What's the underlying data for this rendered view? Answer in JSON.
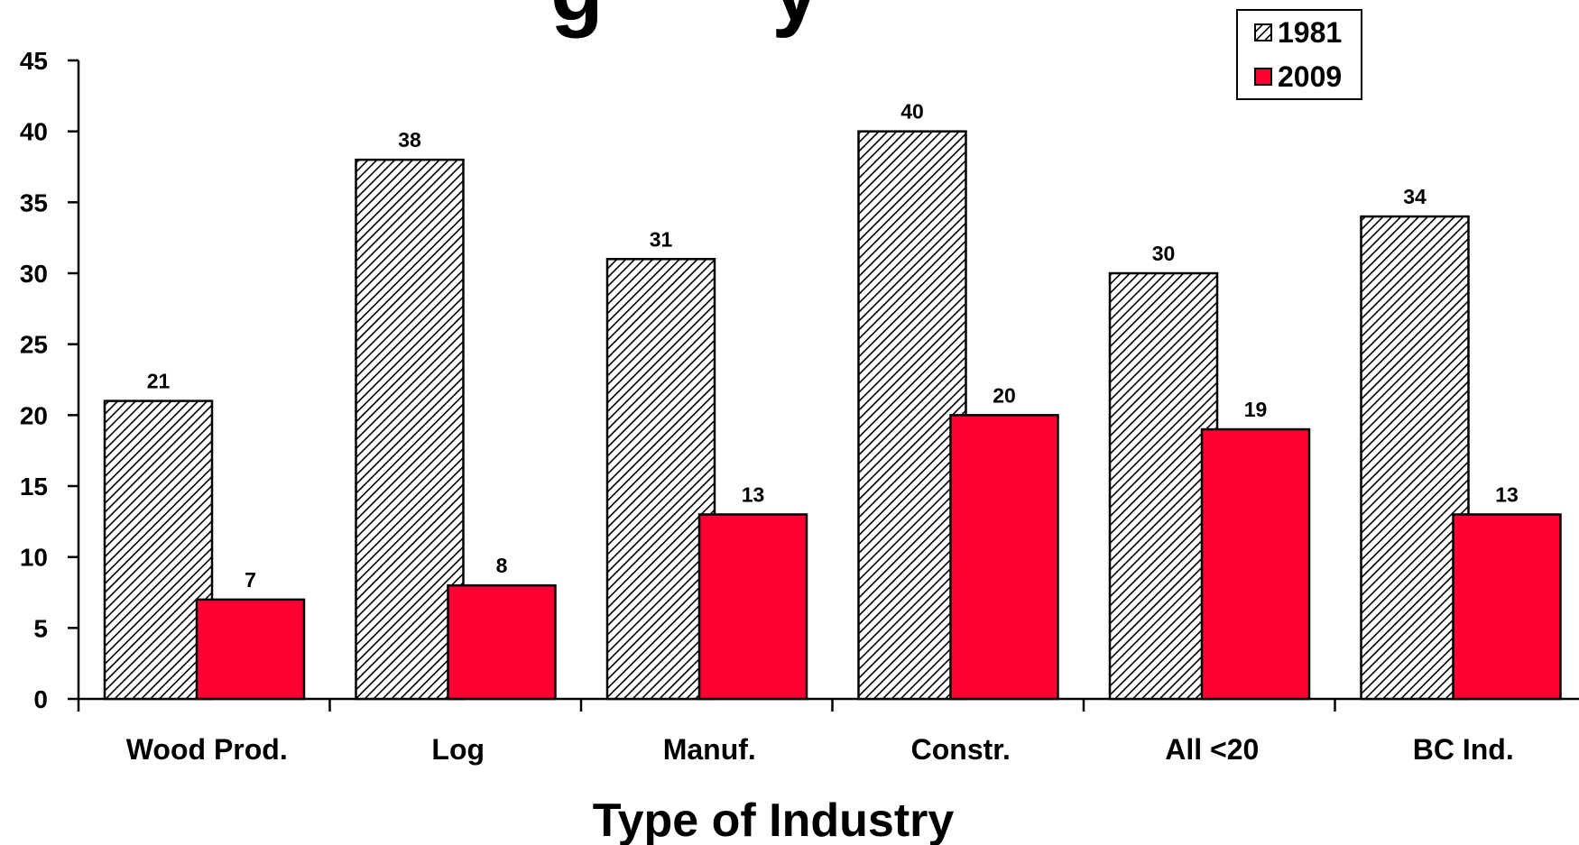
{
  "title_fragment": "g       y",
  "chart_data": {
    "type": "bar",
    "categories": [
      "Wood Prod.",
      "Log",
      "Manuf.",
      "Constr.",
      "All <20",
      "BC Ind."
    ],
    "series": [
      {
        "name": "1981",
        "values": [
          21,
          38,
          31,
          40,
          30,
          34
        ],
        "pattern": "hatch",
        "color": "#000000"
      },
      {
        "name": "2009",
        "values": [
          7,
          8,
          13,
          20,
          19,
          13
        ],
        "pattern": "solid",
        "color": "#ff0033"
      }
    ],
    "xlabel": "Type of Industry",
    "ylabel": "",
    "ylim": [
      0,
      45
    ],
    "yticks": [
      0,
      5,
      10,
      15,
      20,
      25,
      30,
      35,
      40,
      45
    ],
    "grid": false,
    "legend": "top-right"
  }
}
